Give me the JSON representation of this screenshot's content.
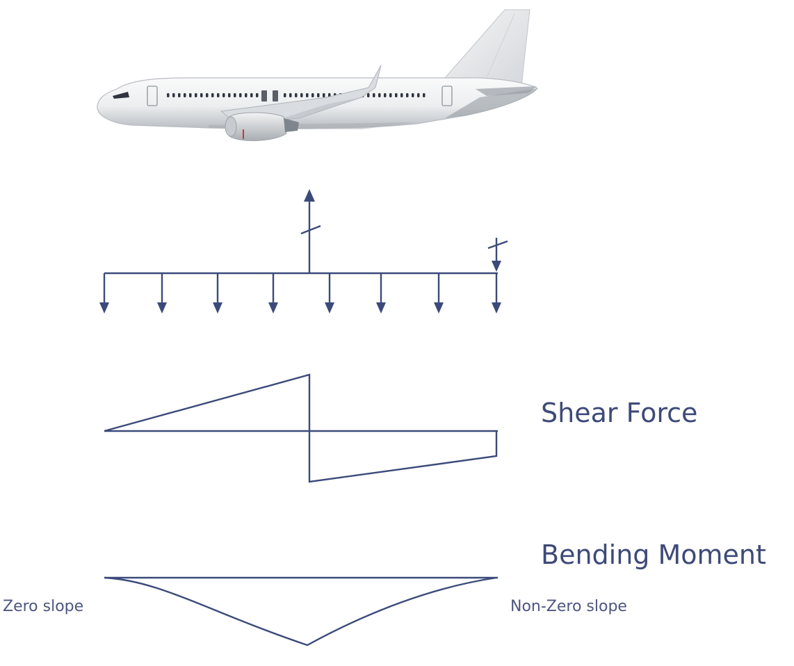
{
  "labels": {
    "shear_force": "Shear Force",
    "bending_moment": "Bending Moment",
    "zero_slope": "Zero slope",
    "nonzero_slope": "Non-Zero slope"
  },
  "colors": {
    "diagram_line": "#3b4a7a",
    "label_text": "#3d4a78",
    "airplane_body": "#f0f1f2",
    "airplane_shade": "#c9ccd1"
  },
  "icons": {
    "airplane": "airplane-illustration"
  }
}
